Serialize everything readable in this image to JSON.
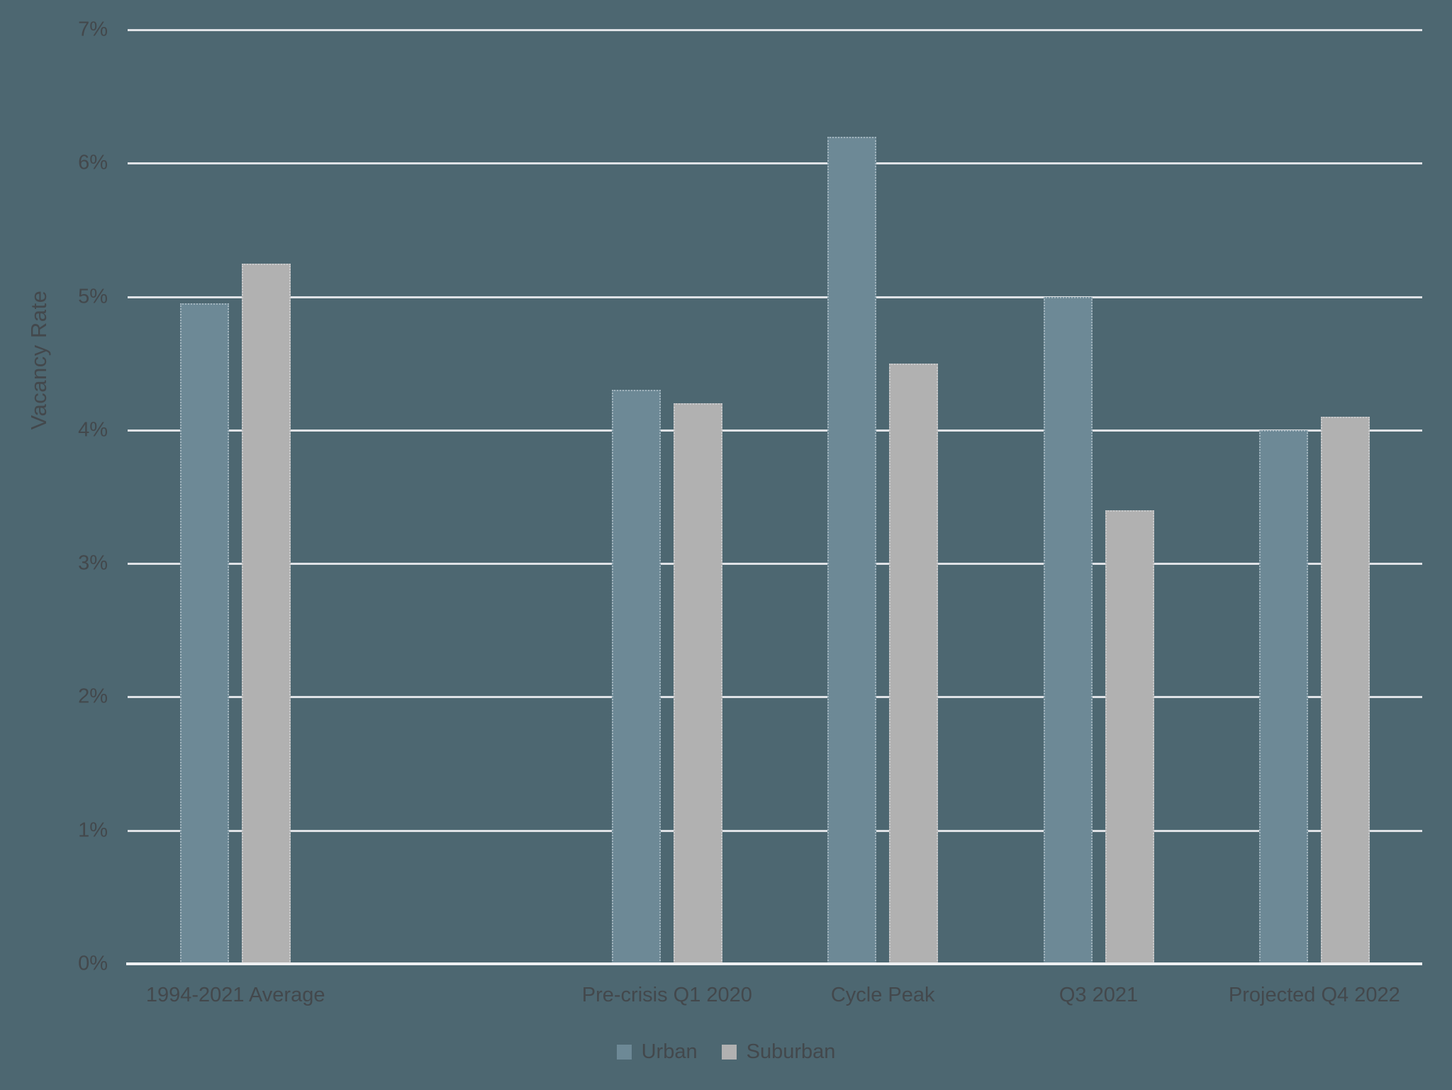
{
  "chart_data": {
    "type": "bar",
    "title": "",
    "xlabel": "",
    "ylabel": "Vacancy Rate",
    "ylim": [
      0,
      7
    ],
    "yticks": [
      0,
      1,
      2,
      3,
      4,
      5,
      6,
      7
    ],
    "ytick_labels": [
      "0%",
      "1%",
      "2%",
      "3%",
      "4%",
      "5%",
      "6%",
      "7%"
    ],
    "grid": true,
    "legend_position": "bottom",
    "categories": [
      "1994-2021 Average",
      "",
      "Pre-crisis Q1 2020",
      "Cycle Peak",
      "Q3 2021",
      "Projected Q4 2022"
    ],
    "series": [
      {
        "name": "Urban",
        "color": "#6d8996",
        "values": [
          4.95,
          null,
          4.3,
          6.2,
          5.0,
          4.0
        ]
      },
      {
        "name": "Suburban",
        "color": "#b1b1b1",
        "values": [
          5.25,
          null,
          4.2,
          4.5,
          3.4,
          4.1
        ]
      }
    ],
    "colors": {
      "background": "#4d6771",
      "gridline": "#dfe2e6",
      "axis_line": "#eef0f2",
      "text": "#43484c"
    }
  }
}
